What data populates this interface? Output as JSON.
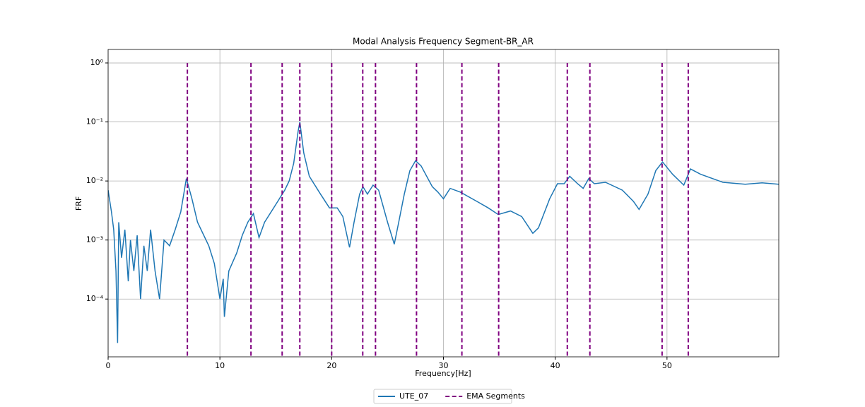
{
  "chart_data": {
    "type": "line",
    "title": "Modal Analysis Frequency Segment-BR_AR",
    "x_label": "Frequency[Hz]",
    "y_label": "FRF",
    "xlim": [
      0,
      60
    ],
    "xticks": [
      0,
      10,
      20,
      30,
      40,
      50
    ],
    "ylim": [
      1.05e-05,
      1.69
    ],
    "log_y": true,
    "yticks": [
      {
        "value": 1,
        "label": "10⁰"
      },
      {
        "value": 0.1,
        "label": "10⁻¹"
      },
      {
        "value": 0.01,
        "label": "10⁻²"
      },
      {
        "value": 0.001,
        "label": "10⁻³"
      },
      {
        "value": 0.0001,
        "label": "10⁻⁴"
      }
    ],
    "grid": true,
    "legend": "bottom",
    "series": [
      {
        "name": "UTE_07",
        "color": "#1f77b4",
        "x": [
          0,
          0.3,
          0.5,
          0.7,
          0.85,
          0.95,
          1.2,
          1.5,
          1.8,
          2.0,
          2.3,
          2.6,
          2.9,
          3.2,
          3.5,
          3.8,
          4.2,
          4.6,
          5.0,
          5.5,
          6.0,
          6.5,
          7.0,
          7.5,
          8.0,
          9.0,
          9.5,
          10.0,
          10.3,
          10.4,
          10.8,
          11.5,
          12.0,
          12.5,
          13.0,
          13.5,
          14.0,
          15.0,
          15.8,
          16.2,
          16.6,
          17.0,
          17.15,
          17.5,
          18.0,
          19.0,
          19.8,
          20.5,
          21.0,
          21.6,
          22.0,
          22.5,
          22.8,
          23.2,
          23.7,
          24.2,
          25.0,
          25.6,
          26.0,
          26.5,
          27.0,
          27.5,
          28.0,
          29.0,
          29.5,
          30.0,
          30.6,
          31.5,
          33.0,
          34.0,
          34.9,
          36.0,
          37.0,
          38.0,
          38.5,
          39.5,
          40.2,
          40.8,
          41.3,
          42.0,
          42.5,
          43.0,
          43.5,
          44.5,
          46.0,
          47.0,
          47.5,
          48.3,
          49.0,
          49.6,
          50.5,
          51.5,
          52.1,
          53.0,
          55.0,
          57.0,
          58.5,
          60.0
        ],
        "values": [
          0.007,
          0.003,
          0.0015,
          0.0003,
          1.8e-05,
          0.002,
          0.0005,
          0.0015,
          0.0002,
          0.001,
          0.0003,
          0.0012,
          0.0001,
          0.0008,
          0.0003,
          0.0015,
          0.0003,
          0.0001,
          0.001,
          0.0008,
          0.0015,
          0.003,
          0.011,
          0.005,
          0.002,
          0.0008,
          0.0004,
          0.0001,
          0.00022,
          5e-05,
          0.0003,
          0.0006,
          0.0012,
          0.002,
          0.0028,
          0.0011,
          0.002,
          0.004,
          0.007,
          0.01,
          0.02,
          0.07,
          0.1,
          0.03,
          0.012,
          0.006,
          0.0035,
          0.0035,
          0.0025,
          0.00075,
          0.002,
          0.006,
          0.008,
          0.006,
          0.0085,
          0.007,
          0.002,
          0.00085,
          0.002,
          0.006,
          0.015,
          0.022,
          0.018,
          0.008,
          0.0065,
          0.005,
          0.0075,
          0.0065,
          0.0045,
          0.0035,
          0.0027,
          0.0031,
          0.0025,
          0.0013,
          0.0016,
          0.005,
          0.009,
          0.009,
          0.012,
          0.009,
          0.0075,
          0.011,
          0.009,
          0.0095,
          0.007,
          0.0045,
          0.0033,
          0.006,
          0.015,
          0.021,
          0.013,
          0.0085,
          0.016,
          0.013,
          0.0095,
          0.0088,
          0.0093,
          0.0088
        ]
      },
      {
        "name": "EMA Segments",
        "color": "#800080",
        "dashed": true,
        "vertical": true,
        "x": [
          7.09,
          12.78,
          15.57,
          17.15,
          20.0,
          22.78,
          23.92,
          27.59,
          31.65,
          34.94,
          41.08,
          43.1,
          49.56,
          51.9
        ]
      }
    ]
  }
}
